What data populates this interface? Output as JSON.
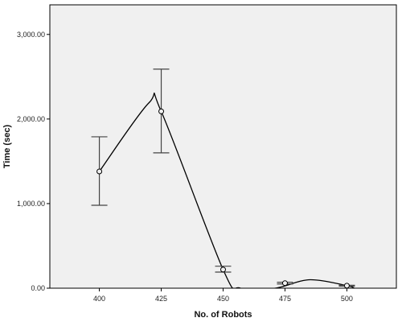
{
  "chart_data": {
    "type": "line",
    "title": "",
    "xlabel": "No. of Robots",
    "ylabel": "Time (sec)",
    "xlim": [
      380,
      520
    ],
    "ylim": [
      0,
      3350
    ],
    "x_ticks": [
      400,
      425,
      450,
      475,
      500
    ],
    "x_tick_labels": [
      "400",
      "425",
      "450",
      "475",
      "500"
    ],
    "y_ticks": [
      0,
      1000,
      2000,
      3000
    ],
    "y_tick_labels": [
      "0.00",
      "1,000.00",
      "2,000.00",
      "3,000.00"
    ],
    "grid": false,
    "legend": "none",
    "series": [
      {
        "points": [
          {
            "x": 400,
            "y": 1380,
            "low": 980,
            "high": 1790
          },
          {
            "x": 425,
            "y": 2090,
            "low": 1600,
            "high": 2590
          },
          {
            "x": 450,
            "y": 220,
            "low": 190,
            "high": 260
          },
          {
            "x": 475,
            "y": 60,
            "low": 50,
            "high": 70
          },
          {
            "x": 500,
            "y": 30,
            "low": 25,
            "high": 35
          }
        ],
        "curve": [
          {
            "x": 400,
            "y": 1380
          },
          {
            "x": 420,
            "y": 2190
          },
          {
            "x": 425,
            "y": 2090
          },
          {
            "x": 450,
            "y": 220
          },
          {
            "x": 457,
            "y": 0
          },
          {
            "x": 471,
            "y": 0
          },
          {
            "x": 485,
            "y": 100
          },
          {
            "x": 500,
            "y": 30
          },
          {
            "x": 503,
            "y": 0
          }
        ]
      }
    ],
    "colors": {
      "plot_background": "#f0f0f0",
      "frame": "#000000",
      "line": "#000000",
      "marker_face": "#f0f0f0",
      "error_bar": "#444444"
    }
  }
}
